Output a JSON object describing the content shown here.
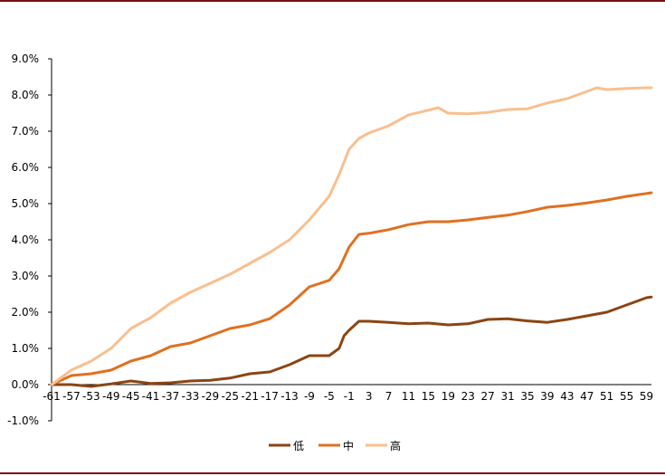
{
  "chart_data": {
    "type": "line",
    "title": "",
    "xlabel": "",
    "ylabel": "",
    "ylim": [
      -1.0,
      9.0
    ],
    "xlim": [
      -61,
      60
    ],
    "y_ticks": [
      "-1.0%",
      "0.0%",
      "1.0%",
      "2.0%",
      "3.0%",
      "4.0%",
      "5.0%",
      "6.0%",
      "7.0%",
      "8.0%",
      "9.0%"
    ],
    "x_ticks": [
      "-61",
      "-57",
      "-53",
      "-49",
      "-45",
      "-41",
      "-37",
      "-33",
      "-29",
      "-25",
      "-21",
      "-17",
      "-13",
      "-9",
      "-5",
      "-1",
      "3",
      "7",
      "11",
      "15",
      "19",
      "23",
      "27",
      "31",
      "35",
      "39",
      "43",
      "47",
      "51",
      "55",
      "59"
    ],
    "legend_position": "bottom",
    "grid": false,
    "series": [
      {
        "name": "低",
        "color": "#8b4513",
        "x": [
          -61,
          -57,
          -53,
          -49,
          -45,
          -41,
          -37,
          -33,
          -29,
          -25,
          -21,
          -17,
          -13,
          -9,
          -5,
          -3,
          -2,
          -1,
          1,
          3,
          7,
          11,
          15,
          19,
          23,
          27,
          31,
          35,
          39,
          43,
          47,
          51,
          55,
          59,
          60
        ],
        "y": [
          0.0,
          0.0,
          -0.05,
          0.02,
          0.1,
          0.03,
          0.05,
          0.1,
          0.12,
          0.18,
          0.3,
          0.35,
          0.55,
          0.8,
          0.8,
          1.0,
          1.35,
          1.5,
          1.75,
          1.75,
          1.72,
          1.68,
          1.7,
          1.65,
          1.68,
          1.8,
          1.82,
          1.76,
          1.72,
          1.8,
          1.9,
          2.0,
          2.2,
          2.4,
          2.42
        ]
      },
      {
        "name": "中",
        "color": "#e07020",
        "x": [
          -61,
          -57,
          -53,
          -49,
          -45,
          -41,
          -37,
          -33,
          -29,
          -25,
          -21,
          -17,
          -13,
          -9,
          -5,
          -3,
          -1,
          1,
          3,
          7,
          11,
          15,
          19,
          23,
          27,
          31,
          35,
          39,
          43,
          47,
          51,
          55,
          59,
          60
        ],
        "y": [
          0.0,
          0.25,
          0.3,
          0.4,
          0.65,
          0.8,
          1.05,
          1.15,
          1.35,
          1.55,
          1.65,
          1.82,
          2.2,
          2.7,
          2.88,
          3.2,
          3.8,
          4.15,
          4.18,
          4.28,
          4.42,
          4.5,
          4.5,
          4.55,
          4.62,
          4.68,
          4.78,
          4.9,
          4.95,
          5.02,
          5.1,
          5.2,
          5.28,
          5.3
        ]
      },
      {
        "name": "高",
        "color": "#f9bf8f",
        "x": [
          -61,
          -57,
          -53,
          -49,
          -45,
          -41,
          -37,
          -33,
          -29,
          -25,
          -21,
          -17,
          -13,
          -9,
          -5,
          -3,
          -1,
          1,
          3,
          7,
          11,
          15,
          17,
          19,
          23,
          27,
          31,
          35,
          39,
          43,
          47,
          49,
          51,
          55,
          59,
          60
        ],
        "y": [
          0.0,
          0.4,
          0.65,
          1.0,
          1.55,
          1.85,
          2.25,
          2.55,
          2.8,
          3.05,
          3.35,
          3.65,
          4.0,
          4.55,
          5.2,
          5.8,
          6.5,
          6.8,
          6.95,
          7.15,
          7.45,
          7.58,
          7.65,
          7.5,
          7.48,
          7.52,
          7.6,
          7.62,
          7.78,
          7.9,
          8.1,
          8.2,
          8.15,
          8.18,
          8.2,
          8.2
        ]
      }
    ]
  }
}
